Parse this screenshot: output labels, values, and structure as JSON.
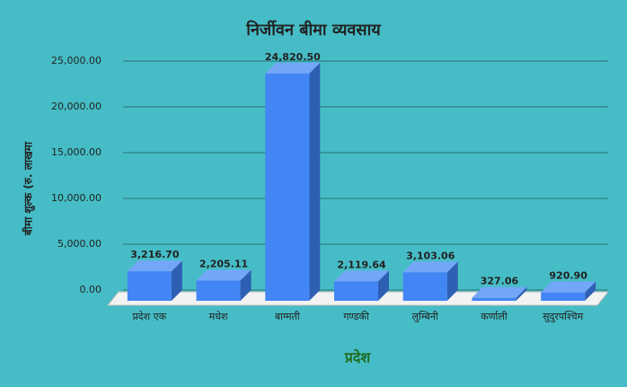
{
  "chart_data": {
    "type": "bar3d",
    "title": "निर्जीवन बीमा व्यवसाय",
    "x_label": "प्रदेश",
    "y_label": "बीमा शुल्क (रु. लाखमा",
    "categories": [
      "प्रदेश एक",
      "मधेश",
      "बाग्मती",
      "गण्डकी",
      "लुम्बिनी",
      "कर्णाली",
      "सुदुरपश्चिम"
    ],
    "values": [
      3216.7,
      2205.11,
      24820.5,
      2119.64,
      3103.06,
      327.06,
      920.9
    ],
    "value_labels": [
      "3,216.70",
      "2,205.11",
      "24,820.50",
      "2,119.64",
      "3,103.06",
      "327.06",
      "920.90"
    ],
    "color": "#4285f4",
    "ylim": [
      0,
      25000
    ],
    "yticks": [
      {
        "value": 0,
        "label": "0.00"
      },
      {
        "value": 5000,
        "label": "5,000.00"
      },
      {
        "value": 10000,
        "label": "10,000.00"
      },
      {
        "value": 15000,
        "label": "15,000.00"
      },
      {
        "value": 20000,
        "label": "20,000.00"
      },
      {
        "value": 25000,
        "label": "25,000.00"
      }
    ],
    "grid": true
  }
}
